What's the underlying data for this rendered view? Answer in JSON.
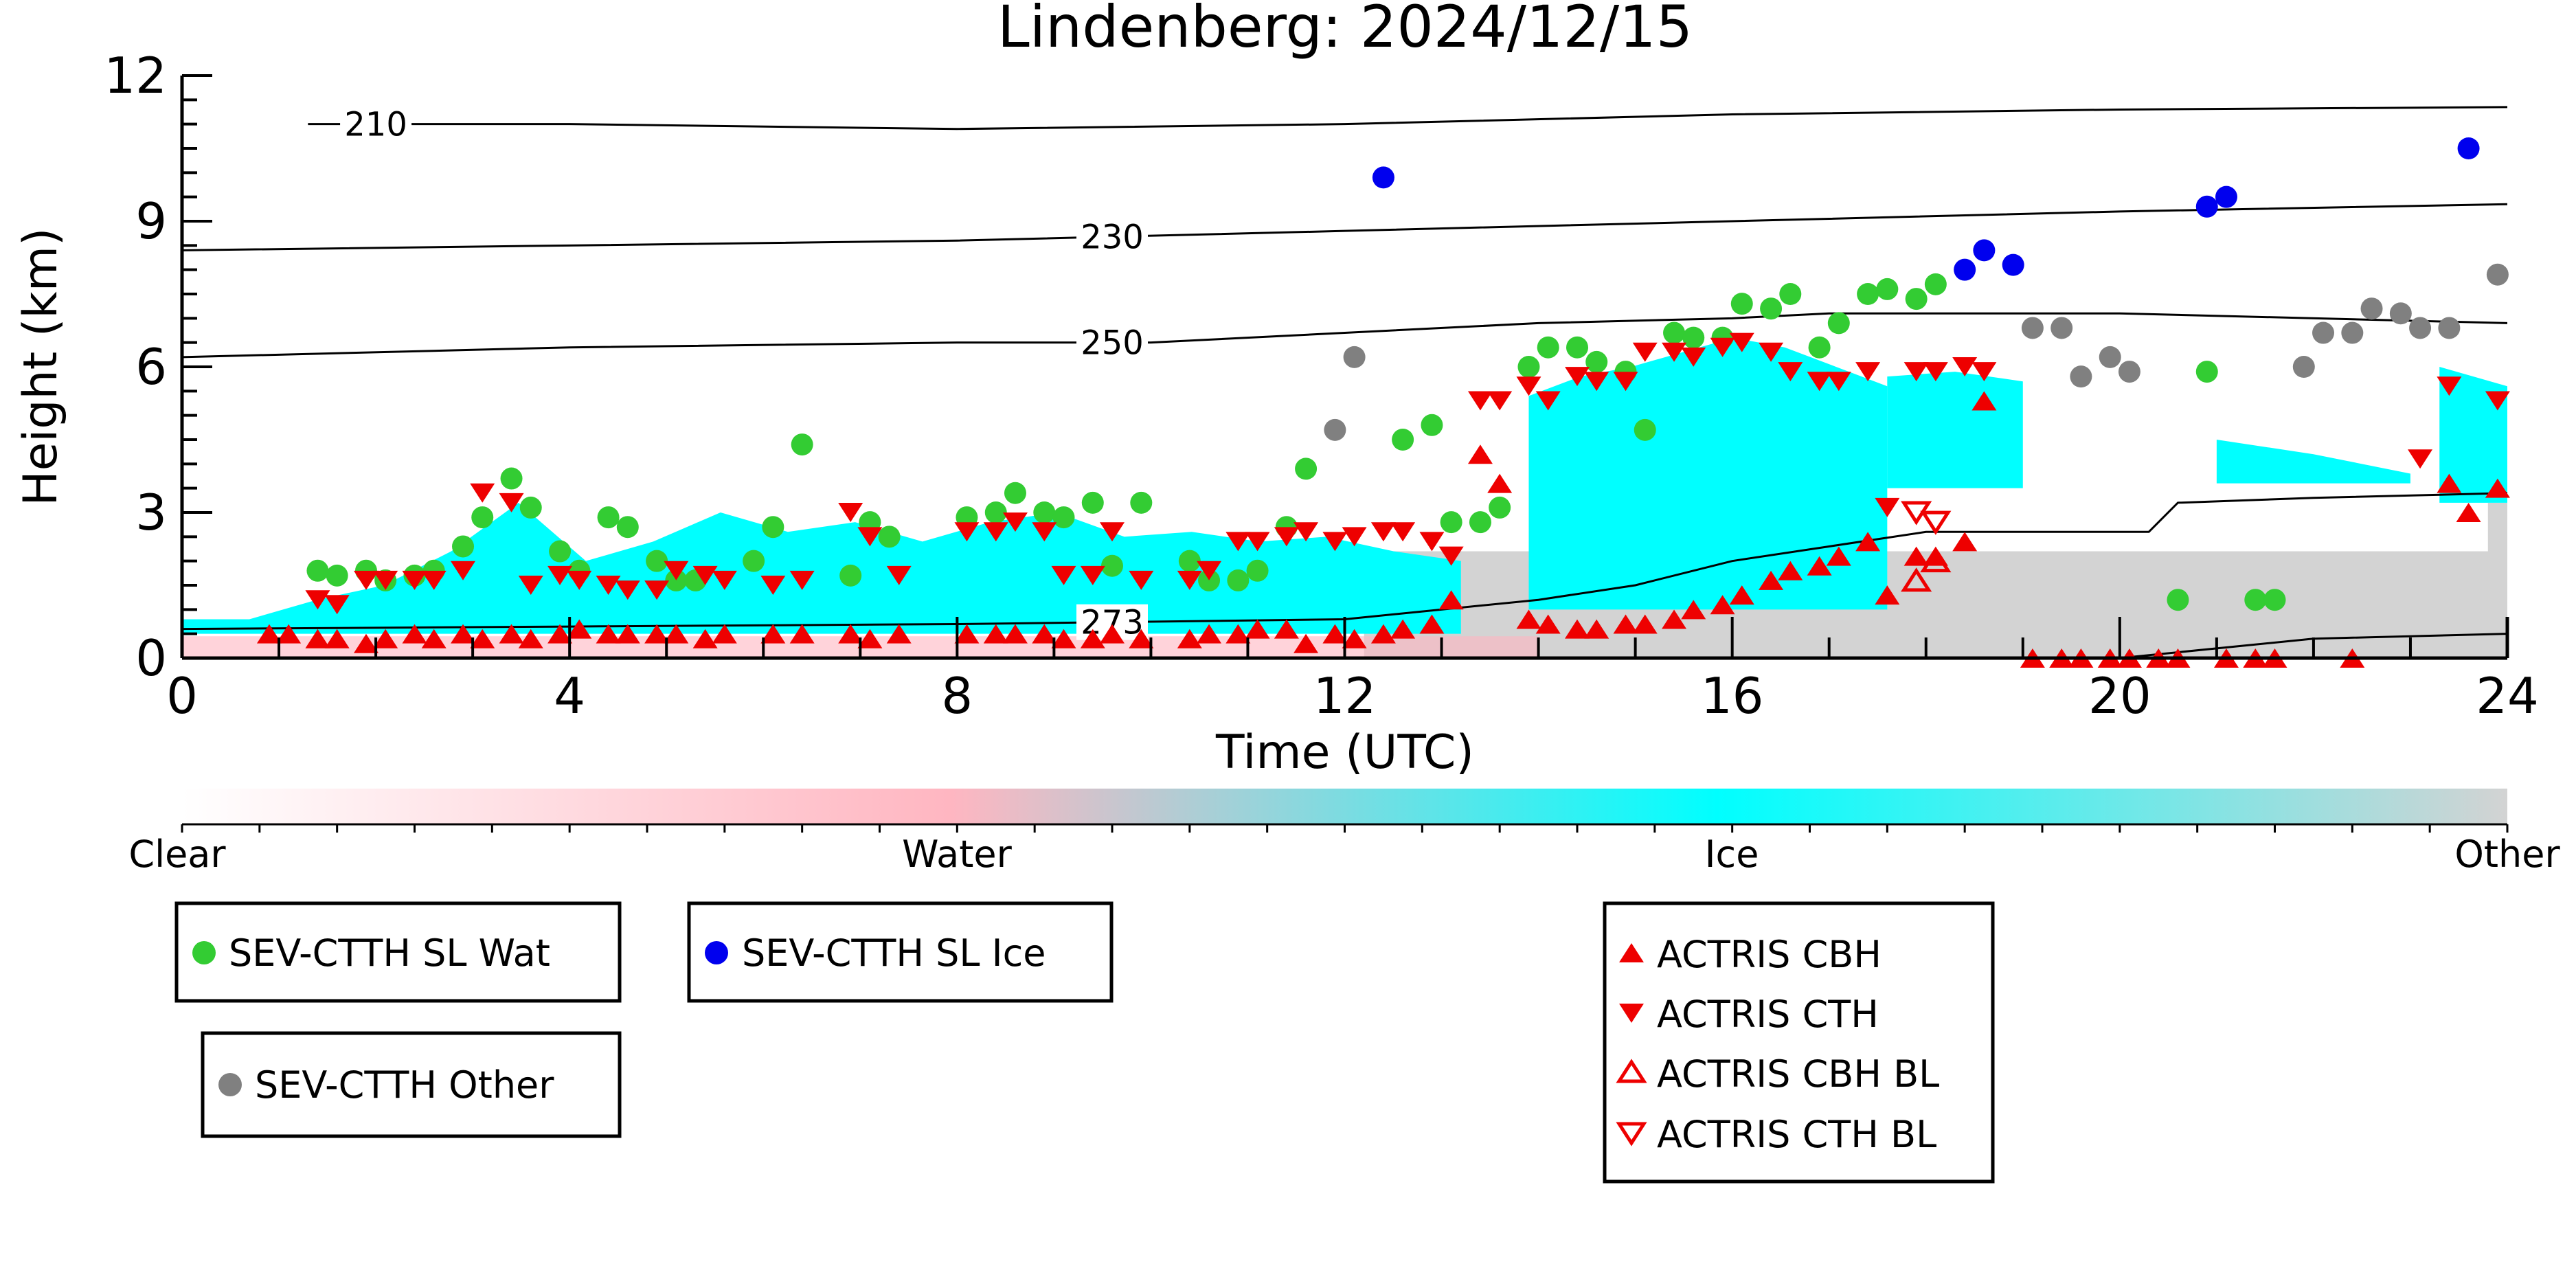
{
  "chart_data": {
    "type": "scatter",
    "title": "Lindenberg: 2024/12/15",
    "xlabel": "Time (UTC)",
    "ylabel": "Height (km)",
    "xlim": [
      0,
      24
    ],
    "ylim": [
      0,
      12
    ],
    "xticks": [
      0,
      4,
      8,
      12,
      16,
      20,
      24
    ],
    "yticks": [
      0,
      3,
      6,
      9,
      12
    ],
    "grid": false,
    "background_classification": {
      "colorbar_labels": [
        "Clear",
        "Water",
        "Ice",
        "Other"
      ],
      "colors": {
        "clear": "#ffffff",
        "water": "#ffb6c1",
        "ice": "#00ffff",
        "other": "#d3d3d3"
      },
      "ice_regions": [
        {
          "x": [
            0.0,
            13.2
          ],
          "top_km": [
            0.8,
            0.8,
            1.2,
            1.5,
            2.2,
            3.2,
            2.0,
            2.4,
            3.0,
            2.6,
            2.8,
            2.4,
            2.8,
            3.0,
            2.5,
            2.6,
            2.4,
            2.5,
            2.2,
            2.0
          ],
          "bottom_km": 0.5
        },
        {
          "x": [
            13.9,
            17.6
          ],
          "top_km": [
            5.4,
            5.8,
            6.0,
            6.3,
            6.6,
            6.4,
            6.0,
            5.6
          ],
          "bottom_km": 1.0
        },
        {
          "x": [
            17.6,
            19.0
          ],
          "top_km": [
            5.8,
            5.9,
            5.7
          ],
          "bottom_km": 3.5
        },
        {
          "x": [
            21.0,
            23.0
          ],
          "top_km": [
            4.5,
            4.2,
            3.8
          ],
          "bottom_km": 3.6
        },
        {
          "x": [
            23.3,
            24.0
          ],
          "top_km": [
            6.0,
            5.6
          ],
          "bottom_km": 3.2
        }
      ]
    },
    "isotherms": [
      {
        "label": "210",
        "label_x": 2.0,
        "x": [
          1.3,
          2.0,
          4.0,
          8.0,
          12.0,
          16.0,
          20.0,
          24.0
        ],
        "y": [
          11.0,
          11.0,
          11.0,
          10.9,
          11.0,
          11.2,
          11.3,
          11.35
        ]
      },
      {
        "label": "230",
        "label_x": 9.6,
        "x": [
          0.0,
          4.0,
          8.0,
          12.0,
          16.0,
          20.0,
          24.0
        ],
        "y": [
          8.4,
          8.5,
          8.6,
          8.8,
          9.0,
          9.2,
          9.35
        ]
      },
      {
        "label": "250",
        "label_x": 9.6,
        "x": [
          0.0,
          4.0,
          8.0,
          10.0,
          12.0,
          14.0,
          16.0,
          17.0,
          20.0,
          24.0
        ],
        "y": [
          6.2,
          6.4,
          6.5,
          6.5,
          6.7,
          6.9,
          7.0,
          7.1,
          7.1,
          6.9
        ]
      },
      {
        "label": "273",
        "label_x": 9.6,
        "x": [
          0.0,
          4.0,
          8.0,
          10.0,
          12.0,
          14.0,
          15.0,
          16.0,
          17.0,
          18.0,
          19.0,
          20.0,
          20.3,
          20.6,
          22.0,
          24.0
        ],
        "y": [
          0.6,
          0.65,
          0.7,
          0.75,
          0.8,
          1.2,
          1.5,
          2.0,
          2.3,
          2.6,
          2.6,
          2.6,
          2.6,
          3.2,
          3.3,
          3.4
        ]
      },
      {
        "label": "",
        "label_x": null,
        "x": [
          20.0,
          22.0,
          24.0
        ],
        "y": [
          0.0,
          0.4,
          0.5
        ]
      }
    ],
    "series": [
      {
        "name": "SEV-CTTH SL Wat",
        "marker": "circle",
        "color": "#33cc33",
        "x": [
          1.4,
          1.6,
          1.9,
          2.1,
          2.4,
          2.6,
          2.9,
          3.1,
          3.4,
          3.6,
          3.9,
          4.1,
          4.4,
          4.6,
          4.9,
          5.1,
          5.3,
          5.9,
          6.1,
          6.4,
          6.9,
          7.1,
          7.3,
          8.1,
          8.4,
          8.6,
          8.9,
          9.1,
          9.4,
          9.6,
          9.9,
          10.4,
          10.6,
          10.9,
          11.1,
          11.4,
          11.6,
          12.6,
          12.9,
          13.1,
          13.4,
          13.6,
          13.9,
          14.1,
          14.4,
          14.6,
          14.9,
          15.1,
          15.4,
          15.6,
          15.9,
          16.1,
          16.4,
          16.6,
          16.9,
          17.1,
          17.4,
          17.6,
          17.9,
          18.1,
          20.6,
          20.9,
          21.4,
          21.6
        ],
        "y": [
          1.8,
          1.7,
          1.8,
          1.6,
          1.7,
          1.8,
          2.3,
          2.9,
          3.7,
          3.1,
          2.2,
          1.8,
          2.9,
          2.7,
          2.0,
          1.6,
          1.6,
          2.0,
          2.7,
          4.4,
          1.7,
          2.8,
          2.5,
          2.9,
          3.0,
          3.4,
          3.0,
          2.9,
          3.2,
          1.9,
          3.2,
          2.0,
          1.6,
          1.6,
          1.8,
          2.7,
          3.9,
          4.5,
          4.8,
          2.8,
          2.8,
          3.1,
          6.0,
          6.4,
          6.4,
          6.1,
          5.9,
          4.7,
          6.7,
          6.6,
          6.6,
          7.3,
          7.2,
          7.5,
          6.4,
          6.9,
          7.5,
          7.6,
          7.4,
          7.7,
          1.2,
          5.9,
          1.2,
          1.2
        ]
      },
      {
        "name": "SEV-CTTH SL Ice",
        "marker": "circle",
        "color": "#0000ee",
        "x": [
          12.4,
          18.4,
          18.6,
          18.9,
          20.9,
          21.1,
          23.6
        ],
        "y": [
          9.9,
          8.0,
          8.4,
          8.1,
          9.3,
          9.5,
          10.5
        ]
      },
      {
        "name": "SEV-CTTH Other",
        "marker": "circle",
        "color": "#808080",
        "x": [
          11.9,
          12.1,
          19.1,
          19.4,
          19.6,
          19.9,
          20.1,
          21.9,
          22.1,
          22.4,
          22.6,
          22.9,
          23.1,
          23.4,
          23.9
        ],
        "y": [
          4.7,
          6.2,
          6.8,
          6.8,
          5.8,
          6.2,
          5.9,
          6.0,
          6.7,
          6.7,
          7.2,
          7.1,
          6.8,
          6.8,
          7.9
        ]
      },
      {
        "name": "ACTRIS CBH",
        "marker": "triangle-up",
        "filled": true,
        "color": "#ee0000",
        "x": [
          0.9,
          1.1,
          1.4,
          1.6,
          1.9,
          2.1,
          2.4,
          2.6,
          2.9,
          3.1,
          3.4,
          3.6,
          3.9,
          4.1,
          4.4,
          4.6,
          4.9,
          5.1,
          5.4,
          5.6,
          6.1,
          6.4,
          6.9,
          7.1,
          7.4,
          8.1,
          8.4,
          8.6,
          8.9,
          9.1,
          9.4,
          9.6,
          9.9,
          10.4,
          10.6,
          10.9,
          11.1,
          11.4,
          11.6,
          11.9,
          12.1,
          12.4,
          12.6,
          12.9,
          13.1,
          13.4,
          13.6,
          13.9,
          14.1,
          14.4,
          14.6,
          14.9,
          15.1,
          15.4,
          15.6,
          15.9,
          16.1,
          16.4,
          16.6,
          16.9,
          17.1,
          17.4,
          17.6,
          17.9,
          18.1,
          18.4,
          18.6,
          19.1,
          19.4,
          19.6,
          19.9,
          20.1,
          20.4,
          20.6,
          21.1,
          21.4,
          21.6,
          22.4,
          23.4,
          23.6,
          23.9
        ],
        "y": [
          0.5,
          0.5,
          0.4,
          0.4,
          0.3,
          0.4,
          0.5,
          0.4,
          0.5,
          0.4,
          0.5,
          0.4,
          0.5,
          0.6,
          0.5,
          0.5,
          0.5,
          0.5,
          0.4,
          0.5,
          0.5,
          0.5,
          0.5,
          0.4,
          0.5,
          0.5,
          0.5,
          0.5,
          0.5,
          0.4,
          0.4,
          0.5,
          0.4,
          0.4,
          0.5,
          0.5,
          0.6,
          0.6,
          0.3,
          0.5,
          0.4,
          0.5,
          0.6,
          0.7,
          1.2,
          4.2,
          3.6,
          0.8,
          0.7,
          0.6,
          0.6,
          0.7,
          0.7,
          0.8,
          1.0,
          1.1,
          1.3,
          1.6,
          1.8,
          1.9,
          2.1,
          2.4,
          1.3,
          2.1,
          2.1,
          2.4,
          5.3,
          0.0,
          0.0,
          0.0,
          0.0,
          0.0,
          0.0,
          0.0,
          0.0,
          0.0,
          0.0,
          0.0,
          3.6,
          3.0,
          3.5
        ]
      },
      {
        "name": "ACTRIS CTH",
        "marker": "triangle-down",
        "filled": true,
        "color": "#ee0000",
        "x": [
          1.4,
          1.6,
          1.9,
          2.1,
          2.4,
          2.6,
          2.9,
          3.1,
          3.4,
          3.6,
          3.9,
          4.1,
          4.4,
          4.6,
          4.9,
          5.1,
          5.4,
          5.6,
          6.1,
          6.4,
          6.9,
          7.1,
          7.4,
          8.1,
          8.4,
          8.6,
          8.9,
          9.1,
          9.4,
          9.6,
          9.9,
          10.4,
          10.6,
          10.9,
          11.1,
          11.4,
          11.6,
          11.9,
          12.1,
          12.4,
          12.6,
          12.9,
          13.1,
          13.4,
          13.6,
          13.9,
          14.1,
          14.4,
          14.6,
          14.9,
          15.1,
          15.4,
          15.6,
          15.9,
          16.1,
          16.4,
          16.6,
          16.9,
          17.1,
          17.4,
          17.6,
          17.9,
          18.1,
          18.4,
          18.6,
          23.1,
          23.4,
          23.9
        ],
        "y": [
          1.2,
          1.1,
          1.6,
          1.6,
          1.6,
          1.6,
          1.8,
          3.4,
          3.2,
          1.5,
          1.7,
          1.6,
          1.5,
          1.4,
          1.4,
          1.8,
          1.7,
          1.6,
          1.5,
          1.6,
          3.0,
          2.5,
          1.7,
          2.6,
          2.6,
          2.8,
          2.6,
          1.7,
          1.7,
          2.6,
          1.6,
          1.6,
          1.8,
          2.4,
          2.4,
          2.5,
          2.6,
          2.4,
          2.5,
          2.6,
          2.6,
          2.4,
          2.1,
          5.3,
          5.3,
          5.6,
          5.3,
          5.8,
          5.7,
          5.7,
          6.3,
          6.3,
          6.2,
          6.4,
          6.5,
          6.3,
          5.9,
          5.7,
          5.7,
          5.9,
          3.1,
          5.9,
          5.9,
          6.0,
          5.9,
          4.1,
          5.6,
          5.3
        ]
      },
      {
        "name": "ACTRIS CBH BL",
        "marker": "triangle-up",
        "filled": false,
        "color": "#ee0000",
        "x": [
          17.9,
          18.1
        ],
        "y": [
          1.6,
          2.0
        ]
      },
      {
        "name": "ACTRIS CTH BL",
        "marker": "triangle-down",
        "filled": false,
        "color": "#ee0000",
        "x": [
          17.9,
          18.1
        ],
        "y": [
          3.0,
          2.8
        ]
      }
    ],
    "legends": [
      {
        "entries": [
          "SEV-CTTH SL Wat"
        ]
      },
      {
        "entries": [
          "SEV-CTTH SL Ice"
        ]
      },
      {
        "entries": [
          "SEV-CTTH Other"
        ]
      },
      {
        "entries": [
          "ACTRIS CBH",
          "ACTRIS CTH",
          "ACTRIS CBH BL",
          "ACTRIS CTH BL"
        ]
      }
    ]
  }
}
